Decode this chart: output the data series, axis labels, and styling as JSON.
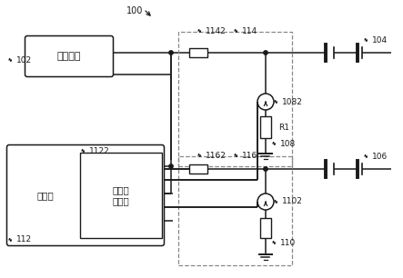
{
  "bg_color": "#ffffff",
  "line_color": "#1a1a1a",
  "dash_color": "#888888",
  "charging_chip_label": "充电芯片",
  "processor_label": "处理器",
  "sample_ctrl_label": "采样控\n制模块",
  "R1_label": "R1",
  "label_100": "100",
  "label_102": "102",
  "label_104": "104",
  "label_106": "106",
  "label_108": "108",
  "label_110": "110",
  "label_112": "112",
  "label_114": "114",
  "label_116": "116",
  "label_1082": "1082",
  "label_1102": "1102",
  "label_1122": "1122",
  "label_1142": "1142",
  "label_1162": "1162"
}
